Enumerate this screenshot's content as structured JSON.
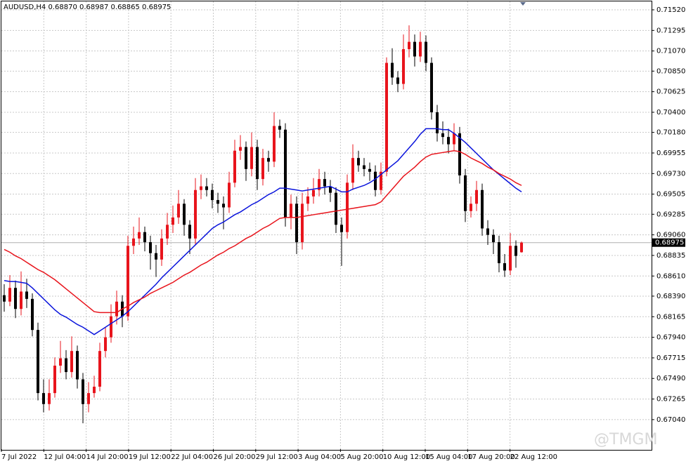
{
  "chart_data": {
    "type": "candlestick",
    "title": "AUDUSD,H4  0.68870 0.68987 0.68865 0.68975",
    "watermark": "@TMGM",
    "current_label": "0.68975",
    "up_color": "#e8141c",
    "down_color": "#000000",
    "ylim": [
      0.66717,
      0.71612
    ],
    "yticks": [
      {
        "value": 0.7152,
        "label": "0.71520"
      },
      {
        "value": 0.71295,
        "label": "0.71295"
      },
      {
        "value": 0.7107,
        "label": "0.71070"
      },
      {
        "value": 0.7085,
        "label": "0.70850"
      },
      {
        "value": 0.70625,
        "label": "0.70625"
      },
      {
        "value": 0.704,
        "label": "0.70400"
      },
      {
        "value": 0.7018,
        "label": "0.70180"
      },
      {
        "value": 0.69955,
        "label": "0.69955"
      },
      {
        "value": 0.6973,
        "label": "0.69730"
      },
      {
        "value": 0.69505,
        "label": "0.69505"
      },
      {
        "value": 0.69285,
        "label": "0.69285"
      },
      {
        "value": 0.6906,
        "label": "0.69060"
      },
      {
        "value": 0.68835,
        "label": "0.68835"
      },
      {
        "value": 0.6861,
        "label": "0.68610"
      },
      {
        "value": 0.6839,
        "label": "0.68390"
      },
      {
        "value": 0.68165,
        "label": "0.68165"
      },
      {
        "value": 0.6794,
        "label": "0.67940"
      },
      {
        "value": 0.67715,
        "label": "0.67715"
      },
      {
        "value": 0.6749,
        "label": "0.67490"
      },
      {
        "value": 0.67265,
        "label": "0.67265"
      },
      {
        "value": 0.6704,
        "label": "0.67040"
      }
    ],
    "x_labels": [
      "7 Jul 2022",
      "12 Jul 04:00",
      "14 Jul 20:00",
      "19 Jul 12:00",
      "22 Jul 04:00",
      "26 Jul 20:00",
      "29 Jul 12:00",
      "3 Aug 04:00",
      "5 Aug 20:00",
      "10 Aug 12:00",
      "15 Aug 04:00",
      "17 Aug 20:00",
      "22 Aug 12:00"
    ],
    "grid": true,
    "open": [
      0.684,
      0.6833,
      0.6848,
      0.6825,
      0.6844,
      0.6836,
      0.6802,
      0.6733,
      0.6721,
      0.6733,
      0.6763,
      0.6771,
      0.6756,
      0.6779,
      0.6748,
      0.6721,
      0.6733,
      0.674,
      0.6779,
      0.6794,
      0.6817,
      0.6833,
      0.6817,
      0.6894,
      0.6902,
      0.6909,
      0.6898,
      0.6886,
      0.6879,
      0.6902,
      0.6917,
      0.6925,
      0.694,
      0.6917,
      0.6902,
      0.6955,
      0.6959,
      0.6955,
      0.6944,
      0.694,
      0.6936,
      0.6963,
      0.6998,
      0.7002,
      0.6978,
      0.7002,
      0.6967,
      0.699,
      0.6986,
      0.7025,
      0.7021,
      0.6925,
      0.694,
      0.6898,
      0.694,
      0.6948,
      0.6955,
      0.6967,
      0.6959,
      0.6952,
      0.6917,
      0.6909,
      0.6963,
      0.699,
      0.6982,
      0.6978,
      0.6975,
      0.6955,
      0.6975,
      0.7094,
      0.7078,
      0.7071,
      0.7109,
      0.7117,
      0.7101,
      0.7117,
      0.7094,
      0.704,
      0.7017,
      0.7013,
      0.7005,
      0.7017,
      0.6971,
      0.6932,
      0.694,
      0.6955,
      0.6913,
      0.6906,
      0.6898,
      0.6875,
      0.6867,
      0.6894,
      0.6887
    ],
    "high": [
      0.6852,
      0.6862,
      0.6856,
      0.6866,
      0.6858,
      0.6842,
      0.681,
      0.6748,
      0.6748,
      0.6772,
      0.679,
      0.678,
      0.6795,
      0.6785,
      0.6755,
      0.6745,
      0.6752,
      0.6788,
      0.6805,
      0.683,
      0.6845,
      0.684,
      0.6905,
      0.6915,
      0.6925,
      0.6915,
      0.6905,
      0.6895,
      0.6912,
      0.693,
      0.6938,
      0.6955,
      0.6945,
      0.6922,
      0.6968,
      0.6972,
      0.6968,
      0.6962,
      0.6952,
      0.6948,
      0.6975,
      0.701,
      0.7015,
      0.7008,
      0.7018,
      0.701,
      0.7,
      0.6998,
      0.704,
      0.7032,
      0.7028,
      0.695,
      0.6948,
      0.6952,
      0.6958,
      0.6968,
      0.6978,
      0.6975,
      0.6966,
      0.6958,
      0.6925,
      0.6972,
      0.7005,
      0.6998,
      0.699,
      0.6985,
      0.6982,
      0.6985,
      0.71,
      0.711,
      0.7085,
      0.7125,
      0.7135,
      0.7125,
      0.7128,
      0.7124,
      0.71,
      0.7048,
      0.703,
      0.7022,
      0.7028,
      0.7024,
      0.6978,
      0.6948,
      0.6965,
      0.6962,
      0.6922,
      0.6912,
      0.6905,
      0.6885,
      0.6908,
      0.69,
      0.68987
    ],
    "low": [
      0.6822,
      0.6828,
      0.6815,
      0.6818,
      0.6826,
      0.6795,
      0.6725,
      0.6712,
      0.6714,
      0.6728,
      0.6755,
      0.6748,
      0.675,
      0.6738,
      0.67,
      0.6712,
      0.6728,
      0.6735,
      0.6772,
      0.6788,
      0.6808,
      0.6805,
      0.6812,
      0.6885,
      0.6895,
      0.6888,
      0.6868,
      0.686,
      0.6872,
      0.6895,
      0.6908,
      0.6918,
      0.6905,
      0.6885,
      0.6895,
      0.6945,
      0.6948,
      0.6935,
      0.693,
      0.6912,
      0.693,
      0.6958,
      0.6988,
      0.6965,
      0.697,
      0.6955,
      0.696,
      0.6975,
      0.698,
      0.7012,
      0.6915,
      0.6912,
      0.6885,
      0.689,
      0.6932,
      0.694,
      0.6948,
      0.695,
      0.6942,
      0.6908,
      0.6872,
      0.6902,
      0.6955,
      0.6975,
      0.697,
      0.6965,
      0.6948,
      0.695,
      0.697,
      0.707,
      0.7062,
      0.7065,
      0.71,
      0.709,
      0.7095,
      0.7085,
      0.7032,
      0.7008,
      0.7005,
      0.6995,
      0.6998,
      0.6962,
      0.692,
      0.6925,
      0.6932,
      0.6905,
      0.6895,
      0.6885,
      0.6865,
      0.686,
      0.6862,
      0.687,
      0.68865
    ],
    "close": [
      0.6833,
      0.6848,
      0.6825,
      0.6844,
      0.6836,
      0.6802,
      0.6733,
      0.6721,
      0.6733,
      0.6763,
      0.6771,
      0.6756,
      0.6779,
      0.6748,
      0.6721,
      0.6733,
      0.674,
      0.6779,
      0.6794,
      0.6817,
      0.6833,
      0.6817,
      0.6894,
      0.6902,
      0.6909,
      0.6898,
      0.6886,
      0.6879,
      0.6902,
      0.6917,
      0.6925,
      0.694,
      0.6917,
      0.6902,
      0.6955,
      0.6959,
      0.6955,
      0.6944,
      0.694,
      0.6936,
      0.6963,
      0.6998,
      0.7002,
      0.6978,
      0.7002,
      0.6967,
      0.699,
      0.6986,
      0.7025,
      0.7021,
      0.6925,
      0.694,
      0.6898,
      0.694,
      0.6948,
      0.6955,
      0.6967,
      0.6959,
      0.6952,
      0.6917,
      0.6909,
      0.6963,
      0.699,
      0.6982,
      0.6978,
      0.6975,
      0.6955,
      0.6975,
      0.7094,
      0.7078,
      0.7071,
      0.7109,
      0.7117,
      0.7101,
      0.7117,
      0.7094,
      0.704,
      0.7017,
      0.7013,
      0.7005,
      0.7017,
      0.6971,
      0.6932,
      0.694,
      0.6955,
      0.6913,
      0.6906,
      0.6898,
      0.6875,
      0.6867,
      0.6894,
      0.6883,
      0.68975
    ],
    "series": [
      {
        "color": "#0a14dc",
        "values": [
          0.6856,
          0.6855,
          0.6855,
          0.6854,
          0.6853,
          0.6848,
          0.6842,
          0.6836,
          0.683,
          0.6824,
          0.6819,
          0.6816,
          0.6812,
          0.6808,
          0.6805,
          0.6801,
          0.6797,
          0.6801,
          0.6805,
          0.6809,
          0.6813,
          0.6817,
          0.6822,
          0.6828,
          0.6834,
          0.684,
          0.6846,
          0.6852,
          0.6859,
          0.6865,
          0.6871,
          0.6877,
          0.6883,
          0.6889,
          0.6895,
          0.6901,
          0.6907,
          0.6913,
          0.6917,
          0.692,
          0.6924,
          0.6928,
          0.6931,
          0.6935,
          0.6939,
          0.6942,
          0.6946,
          0.695,
          0.6953,
          0.6957,
          0.6957,
          0.6956,
          0.6955,
          0.6954,
          0.6955,
          0.6956,
          0.6957,
          0.6958,
          0.6959,
          0.6956,
          0.6953,
          0.6953,
          0.6956,
          0.6958,
          0.696,
          0.6963,
          0.6967,
          0.6972,
          0.6977,
          0.6982,
          0.6987,
          0.6994,
          0.7001,
          0.7008,
          0.7016,
          0.7022,
          0.7022,
          0.7022,
          0.7021,
          0.7021,
          0.7017,
          0.7012,
          0.7007,
          0.7001,
          0.6995,
          0.6989,
          0.6983,
          0.6977,
          0.6972,
          0.6967,
          0.6962,
          0.6957,
          0.6953
        ]
      },
      {
        "color": "#e8141c",
        "values": [
          0.689,
          0.6887,
          0.6883,
          0.688,
          0.6876,
          0.6872,
          0.6868,
          0.6865,
          0.6861,
          0.6857,
          0.6852,
          0.6847,
          0.6842,
          0.6837,
          0.6832,
          0.6827,
          0.6822,
          0.6821,
          0.6821,
          0.6821,
          0.6821,
          0.6825,
          0.6828,
          0.6832,
          0.6835,
          0.6838,
          0.6842,
          0.6845,
          0.6848,
          0.6851,
          0.6854,
          0.6858,
          0.6862,
          0.6865,
          0.6869,
          0.6873,
          0.6876,
          0.688,
          0.6884,
          0.6887,
          0.6891,
          0.6894,
          0.6898,
          0.6902,
          0.6905,
          0.6909,
          0.6913,
          0.6916,
          0.692,
          0.6924,
          0.6925,
          0.6925,
          0.6925,
          0.6926,
          0.6927,
          0.6928,
          0.6929,
          0.693,
          0.6931,
          0.6932,
          0.6933,
          0.6934,
          0.6935,
          0.6936,
          0.6937,
          0.6938,
          0.6939,
          0.6942,
          0.6949,
          0.6956,
          0.6963,
          0.697,
          0.6975,
          0.698,
          0.6986,
          0.6991,
          0.6994,
          0.6995,
          0.6996,
          0.6997,
          0.6998,
          0.6997,
          0.6994,
          0.699,
          0.6987,
          0.6984,
          0.698,
          0.6977,
          0.6973,
          0.697,
          0.6967,
          0.6963,
          0.696
        ]
      }
    ]
  }
}
